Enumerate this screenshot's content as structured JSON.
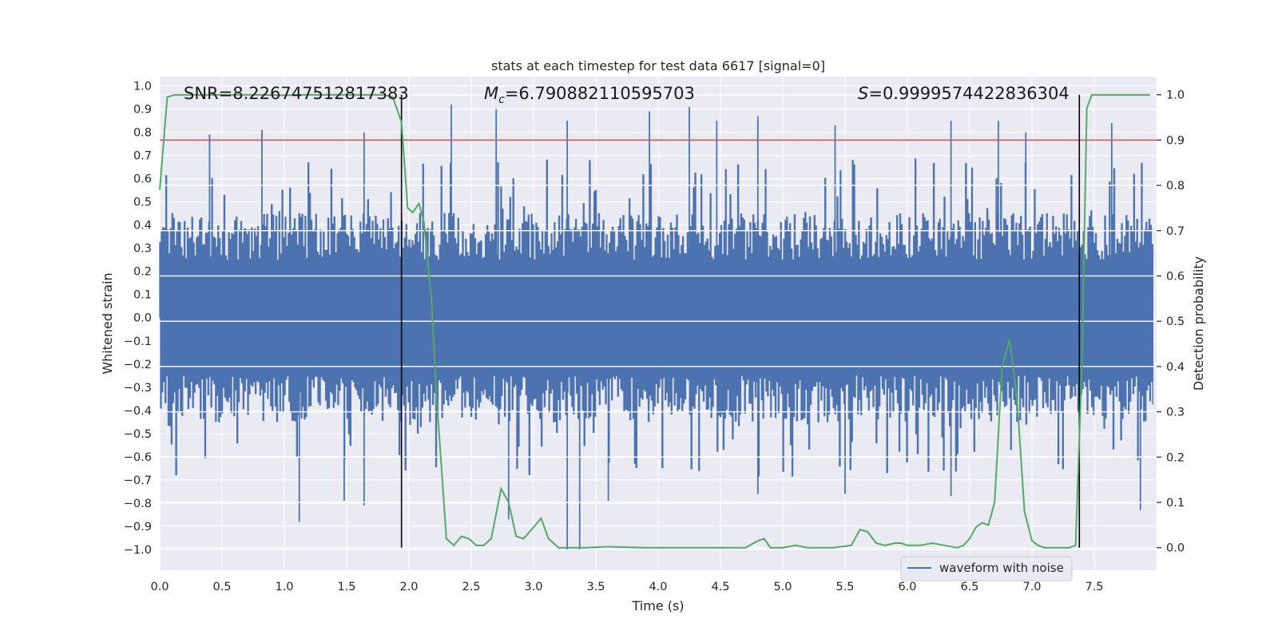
{
  "chart_data": {
    "type": "line",
    "title": "stats at each timestep for test data 6617 [signal=0]",
    "xlabel": "Time (s)",
    "ylabel": "Whitened strain",
    "ylabel_right": "Detection probability",
    "xlim": [
      0.0,
      8.0
    ],
    "ylim": [
      -1.09,
      1.04
    ],
    "ylim_right": [
      -0.05,
      1.04
    ],
    "xticks": [
      "0.0",
      "0.5",
      "1.0",
      "1.5",
      "2.0",
      "2.5",
      "3.0",
      "3.5",
      "4.0",
      "4.5",
      "5.0",
      "5.5",
      "6.0",
      "6.5",
      "7.0",
      "7.5"
    ],
    "yticks": [
      "1.0",
      "0.9",
      "0.8",
      "0.7",
      "0.6",
      "0.5",
      "0.4",
      "0.3",
      "0.2",
      "0.1",
      "0.0",
      "−0.1",
      "−0.2",
      "−0.3",
      "−0.4",
      "−0.5",
      "−0.6",
      "−0.7",
      "−0.8",
      "−0.9",
      "−1.0"
    ],
    "yticks_right": [
      "1.0",
      "0.9",
      "0.8",
      "0.7",
      "0.6",
      "0.5",
      "0.4",
      "0.3",
      "0.2",
      "0.1",
      "0.0"
    ],
    "grid": true,
    "annotations": {
      "snr": "SNR=8.226747512817383",
      "mc_symbol": "M",
      "mc_sub": "c",
      "mc_value": "=6.790882110595703",
      "s_symbol": "S",
      "s_value": "=0.9999574422836304"
    },
    "threshold_right": 0.9,
    "vertical_lines_x": [
      1.94,
      7.38
    ],
    "series": [
      {
        "name": "waveform with noise",
        "color": "#4c72b0",
        "noise_core_amplitude": 0.45,
        "noise_peak_amplitude": 0.92,
        "spikes": [
          {
            "x": 0.4,
            "y": 0.79
          },
          {
            "x": 0.82,
            "y": 0.81
          },
          {
            "x": 1.64,
            "y": 0.8
          },
          {
            "x": 2.34,
            "y": 0.92
          },
          {
            "x": 2.7,
            "y": 0.9
          },
          {
            "x": 3.27,
            "y": 0.85
          },
          {
            "x": 3.93,
            "y": 0.89
          },
          {
            "x": 4.25,
            "y": 0.91
          },
          {
            "x": 4.47,
            "y": 0.85
          },
          {
            "x": 4.8,
            "y": 0.87
          },
          {
            "x": 5.42,
            "y": 0.83
          },
          {
            "x": 6.35,
            "y": 0.85
          },
          {
            "x": 6.73,
            "y": 0.85
          },
          {
            "x": 6.95,
            "y": 0.8
          },
          {
            "x": 7.64,
            "y": 0.84
          },
          {
            "x": 1.12,
            "y": -0.88
          },
          {
            "x": 1.48,
            "y": -0.79
          },
          {
            "x": 1.64,
            "y": -0.81
          },
          {
            "x": 2.8,
            "y": -0.87
          },
          {
            "x": 3.27,
            "y": -1.0
          },
          {
            "x": 3.37,
            "y": -1.0
          },
          {
            "x": 3.6,
            "y": -0.79
          },
          {
            "x": 4.8,
            "y": -0.76
          },
          {
            "x": 5.5,
            "y": -0.76
          },
          {
            "x": 6.35,
            "y": -0.77
          },
          {
            "x": 7.87,
            "y": -0.83
          }
        ]
      },
      {
        "name": "Detection probability",
        "color": "#55a868",
        "x": [
          0.0,
          0.06,
          0.12,
          0.2,
          0.4,
          0.6,
          0.8,
          1.0,
          1.2,
          1.4,
          1.6,
          1.8,
          1.87,
          1.94,
          1.99,
          2.03,
          2.08,
          2.12,
          2.18,
          2.22,
          2.26,
          2.3,
          2.36,
          2.42,
          2.48,
          2.54,
          2.6,
          2.66,
          2.74,
          2.8,
          2.86,
          2.92,
          3.0,
          3.06,
          3.12,
          3.2,
          3.3,
          3.4,
          3.6,
          3.9,
          4.2,
          4.6,
          4.7,
          4.8,
          4.85,
          4.9,
          5.0,
          5.1,
          5.2,
          5.4,
          5.55,
          5.62,
          5.68,
          5.75,
          5.82,
          5.9,
          5.95,
          6.0,
          6.1,
          6.2,
          6.3,
          6.4,
          6.45,
          6.5,
          6.55,
          6.6,
          6.65,
          6.7,
          6.76,
          6.82,
          6.88,
          6.94,
          7.0,
          7.05,
          7.1,
          7.2,
          7.3,
          7.35,
          7.4,
          7.44,
          7.48,
          7.55,
          7.7,
          7.95
        ],
        "values": [
          0.79,
          0.995,
          1.0,
          1.0,
          1.0,
          1.0,
          1.0,
          0.999,
          1.0,
          1.0,
          1.0,
          1.0,
          0.995,
          0.94,
          0.75,
          0.74,
          0.76,
          0.72,
          0.55,
          0.34,
          0.18,
          0.02,
          0.005,
          0.025,
          0.02,
          0.005,
          0.005,
          0.02,
          0.13,
          0.1,
          0.025,
          0.02,
          0.045,
          0.065,
          0.02,
          0.0,
          0.0,
          0.0,
          0.002,
          0.0,
          0.0,
          0.0,
          0.0,
          0.015,
          0.02,
          0.0,
          0.0,
          0.005,
          0.0,
          0.0,
          0.005,
          0.04,
          0.035,
          0.01,
          0.005,
          0.01,
          0.01,
          0.005,
          0.005,
          0.01,
          0.005,
          0.0,
          0.005,
          0.02,
          0.045,
          0.055,
          0.05,
          0.1,
          0.4,
          0.46,
          0.33,
          0.08,
          0.015,
          0.005,
          0.0,
          0.0,
          0.0,
          0.005,
          0.4,
          0.97,
          1.0,
          1.0,
          1.0,
          1.0
        ]
      }
    ],
    "legend": {
      "position": "bottom-right",
      "entries": [
        "waveform with noise"
      ]
    }
  }
}
